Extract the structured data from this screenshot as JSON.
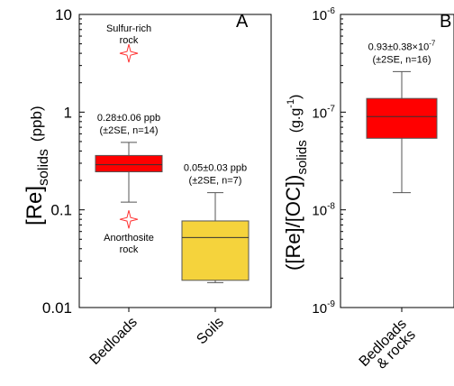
{
  "chart_data": [
    {
      "panel": "A",
      "type": "box",
      "scale": "log",
      "ylim": [
        0.01,
        10
      ],
      "ylabel_main": "[Re]",
      "ylabel_sub": "solids",
      "ylabel_unit": "(ppb)",
      "yticks": [
        {
          "value": 10,
          "label": "10"
        },
        {
          "value": 1,
          "label": "1"
        },
        {
          "value": 0.1,
          "label": "0.1"
        },
        {
          "value": 0.01,
          "label": "0.01"
        }
      ],
      "categories": [
        "Bedloads",
        "Soils"
      ],
      "boxes": [
        {
          "category": "Bedloads",
          "color": "#ff0000",
          "whisker_low": 0.12,
          "q1": 0.245,
          "median": 0.29,
          "q3": 0.36,
          "whisker_high": 0.49,
          "annotation_line1": "0.28±0.06 ppb",
          "annotation_line2": "(±2SE, n=14)"
        },
        {
          "category": "Soils",
          "color": "#f5d33c",
          "whisker_low": 0.018,
          "q1": 0.019,
          "median": 0.052,
          "q3": 0.077,
          "whisker_high": 0.15,
          "annotation_line1": "0.05±0.03 ppb",
          "annotation_line2": "(±2SE, n=7)"
        }
      ],
      "outliers": [
        {
          "category": "Bedloads",
          "value": 4.0,
          "label_line1": "Sulfur-rich",
          "label_line2": "rock",
          "color": "#ff3333"
        },
        {
          "category": "Bedloads",
          "value": 0.08,
          "label_line1": "Anorthosite",
          "label_line2": "rock",
          "color": "#ff3333"
        }
      ]
    },
    {
      "panel": "B",
      "type": "box",
      "scale": "log",
      "ylim": [
        1e-09,
        1e-06
      ],
      "ylabel_main": "([Re]/[OC])",
      "ylabel_sub": "solids",
      "ylabel_unit": "(g.g",
      "ylabel_unit_sup": "-1",
      "ylabel_unit_close": ")",
      "yticks": [
        {
          "value": 1e-06,
          "base": "10",
          "exp": "-6"
        },
        {
          "value": 1e-07,
          "base": "10",
          "exp": "-7"
        },
        {
          "value": 1e-08,
          "base": "10",
          "exp": "-8"
        },
        {
          "value": 1e-09,
          "base": "10",
          "exp": "-9"
        }
      ],
      "categories": [
        "Bedloads & rocks"
      ],
      "category_line1": "Bedloads",
      "category_line2": "& rocks",
      "boxes": [
        {
          "category": "Bedloads & rocks",
          "color": "#ff0000",
          "whisker_low": 1.5e-08,
          "q1": 5.4e-08,
          "median": 9e-08,
          "q3": 1.38e-07,
          "whisker_high": 2.6e-07,
          "annotation_line1": "0.93±0.38×10",
          "annotation_sup": "-7",
          "annotation_line2": "(±2SE, n=16)"
        }
      ]
    }
  ]
}
